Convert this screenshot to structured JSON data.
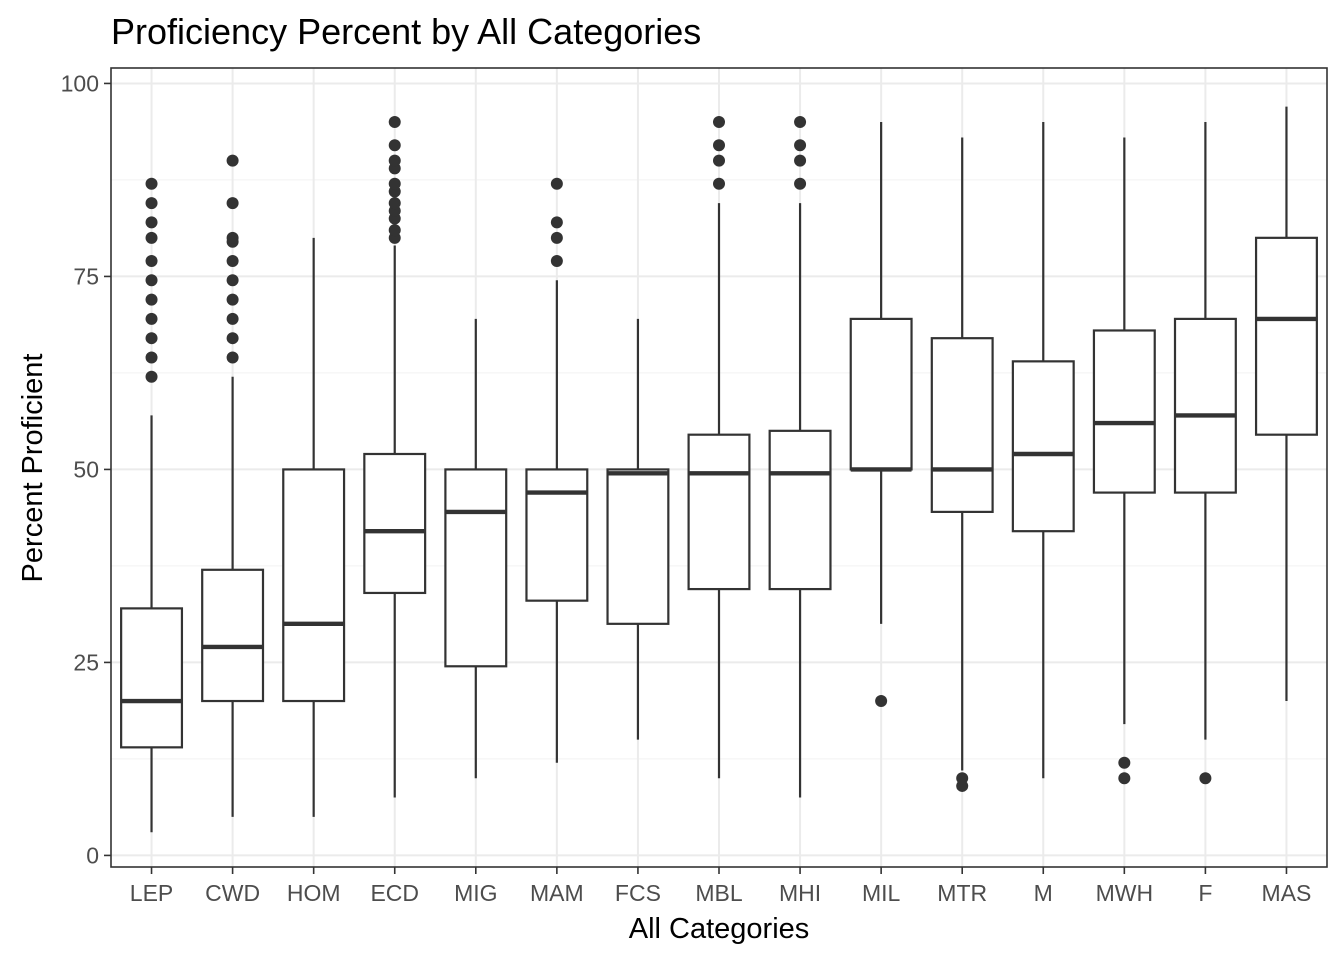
{
  "chart_data": {
    "type": "boxplot",
    "title": "Proficiency Percent by All Categories",
    "xlabel": "All Categories",
    "ylabel": "Percent Proficient",
    "ylim": [
      -1.5,
      102
    ],
    "yticks": [
      0,
      25,
      50,
      75,
      100
    ],
    "grid": true,
    "legend": "none",
    "categories": [
      "LEP",
      "CWD",
      "HOM",
      "ECD",
      "MIG",
      "MAM",
      "FCS",
      "MBL",
      "MHI",
      "MIL",
      "MTR",
      "M",
      "MWH",
      "F",
      "MAS"
    ],
    "boxes": [
      {
        "category": "LEP",
        "whisker_low": 3,
        "q1": 14,
        "median": 20,
        "q3": 32,
        "whisker_high": 57,
        "outliers": [
          62,
          64.5,
          67,
          69.5,
          72,
          74.5,
          77,
          80,
          82,
          84.5,
          87
        ]
      },
      {
        "category": "CWD",
        "whisker_low": 5,
        "q1": 20,
        "median": 27,
        "q3": 37,
        "whisker_high": 62,
        "outliers": [
          64.5,
          67,
          69.5,
          72,
          74.5,
          77,
          79.5,
          80,
          84.5,
          90
        ]
      },
      {
        "category": "HOM",
        "whisker_low": 5,
        "q1": 20,
        "median": 30,
        "q3": 50,
        "whisker_high": 80,
        "outliers": []
      },
      {
        "category": "ECD",
        "whisker_low": 7.5,
        "q1": 34,
        "median": 42,
        "q3": 52,
        "whisker_high": 79,
        "outliers": [
          80,
          81,
          82.5,
          83.5,
          84.5,
          86,
          87,
          89,
          90,
          92,
          95
        ]
      },
      {
        "category": "MIG",
        "whisker_low": 10,
        "q1": 24.5,
        "median": 44.5,
        "q3": 50,
        "whisker_high": 69.5,
        "outliers": []
      },
      {
        "category": "MAM",
        "whisker_low": 12,
        "q1": 33,
        "median": 47,
        "q3": 50,
        "whisker_high": 74.5,
        "outliers": [
          77,
          80,
          82,
          87
        ]
      },
      {
        "category": "FCS",
        "whisker_low": 15,
        "q1": 30,
        "median": 49.5,
        "q3": 50,
        "whisker_high": 69.5,
        "outliers": []
      },
      {
        "category": "MBL",
        "whisker_low": 10,
        "q1": 34.5,
        "median": 49.5,
        "q3": 54.5,
        "whisker_high": 84.5,
        "outliers": [
          87,
          90,
          92,
          95
        ]
      },
      {
        "category": "MHI",
        "whisker_low": 7.5,
        "q1": 34.5,
        "median": 49.5,
        "q3": 55,
        "whisker_high": 84.5,
        "outliers": [
          87,
          90,
          92,
          95
        ]
      },
      {
        "category": "MIL",
        "whisker_low": 30,
        "q1": 50,
        "median": 50,
        "q3": 69.5,
        "whisker_high": 95,
        "outliers": [
          20
        ]
      },
      {
        "category": "MTR",
        "whisker_low": 11,
        "q1": 44.5,
        "median": 50,
        "q3": 67,
        "whisker_high": 93,
        "outliers": [
          9,
          10
        ]
      },
      {
        "category": "M",
        "whisker_low": 10,
        "q1": 42,
        "median": 52,
        "q3": 64,
        "whisker_high": 95,
        "outliers": []
      },
      {
        "category": "MWH",
        "whisker_low": 17,
        "q1": 47,
        "median": 56,
        "q3": 68,
        "whisker_high": 93,
        "outliers": [
          10,
          12
        ]
      },
      {
        "category": "F",
        "whisker_low": 15,
        "q1": 47,
        "median": 57,
        "q3": 69.5,
        "whisker_high": 95,
        "outliers": [
          10
        ]
      },
      {
        "category": "MAS",
        "whisker_low": 20,
        "q1": 54.5,
        "median": 69.5,
        "q3": 80,
        "whisker_high": 97,
        "outliers": []
      }
    ]
  }
}
